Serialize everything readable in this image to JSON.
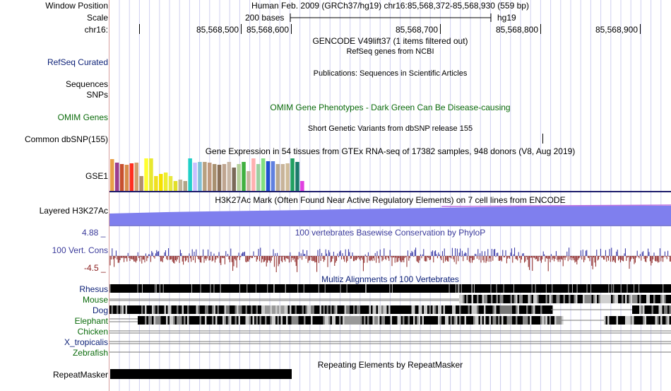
{
  "header": {
    "window_position_label": "Window Position",
    "window_position_value": "Human Feb. 2009 (GRCh37/hg19)   chr16:85,568,372-85,568,930 (559 bp)",
    "scale_label": "Scale",
    "scale_bases": "200 bases",
    "scale_assembly": "hg19",
    "chrom_label": "chr16:",
    "ruler_ticks": [
      "85,568,500",
      "85,568,600",
      "85,568,700",
      "85,568,800",
      "85,568,900"
    ]
  },
  "tracks": {
    "gencode_title": "GENCODE V49lift37 (1 items filtered out)",
    "refseq_title": "RefSeq genes from NCBI",
    "refseq_label": "RefSeq Curated",
    "publications_title": "Publications: Sequences in Scientific Articles",
    "sequences_label": "Sequences",
    "snps_label": "SNPs",
    "omim_title": "OMIM Gene Phenotypes - Dark Green Can Be Disease-causing",
    "omim_label": "OMIM Genes",
    "dbsnp_title": "Short Genetic Variants from dbSNP release 155",
    "dbsnp_label": "Common dbSNP(155)",
    "gtex_title": "Gene Expression in 54 tissues from GTEx RNA-seq of 17382 samples, 948 donors (V8, Aug 2019)",
    "gtex_label": "GSE1",
    "h3k27ac_title": "H3K27Ac Mark (Often Found Near Active Regulatory Elements) on 7 cell lines from ENCODE",
    "h3k27ac_label": "Layered H3K27Ac",
    "cons_title": "100 vertebrates Basewise Conservation by PhyloP",
    "cons_label": "100 Vert. Cons",
    "cons_max": "4.88 _",
    "cons_min": "-4.5 _",
    "multiz_title": "Multiz Alignments of 100 Vertebrates",
    "species": [
      "Rhesus",
      "Mouse",
      "Dog",
      "Elephant",
      "Chicken",
      "X_tropicalis",
      "Zebrafish"
    ],
    "repeat_title": "Repeating Elements by RepeatMasker",
    "repeat_label": "RepeatMasker"
  },
  "colors": {
    "gtex_bars": [
      "#e8a048",
      "#9b3f8f",
      "#c8502e",
      "#d98c4a",
      "#ff3020",
      "#d0a070",
      "#b09070",
      "#ffff30",
      "#e8e830",
      "#f0e020",
      "#f5e000",
      "#eeee30",
      "#e8e840",
      "#e2e028",
      "#c0b49a",
      "#b0a488",
      "#20d0c8",
      "#c8c0ff",
      "#80c0d8",
      "#b8a080",
      "#c09a80",
      "#a89070",
      "#8a7058",
      "#bfa590",
      "#c9b7a6",
      "#7a6a58",
      "#b4d09a",
      "#40b040",
      "#c8b4a0",
      "#ffb0b0",
      "#9ad0a0",
      "#80e080",
      "#2050d0",
      "#6080e0",
      "#b8a890",
      "#c8b49a",
      "#d0bc9a",
      "#20a060",
      "#1a7a6a",
      "#e040e0"
    ],
    "gtex_heights": [
      0.95,
      0.85,
      0.8,
      0.78,
      0.82,
      0.86,
      0.45,
      0.98,
      0.98,
      0.45,
      0.5,
      0.55,
      0.45,
      0.3,
      0.35,
      0.3,
      0.98,
      0.85,
      0.88,
      0.88,
      0.85,
      0.8,
      0.78,
      0.8,
      0.88,
      0.7,
      0.8,
      0.88,
      0.6,
      0.98,
      0.8,
      0.98,
      0.9,
      0.9,
      0.8,
      0.8,
      0.82,
      0.98,
      0.88,
      0.3
    ]
  }
}
